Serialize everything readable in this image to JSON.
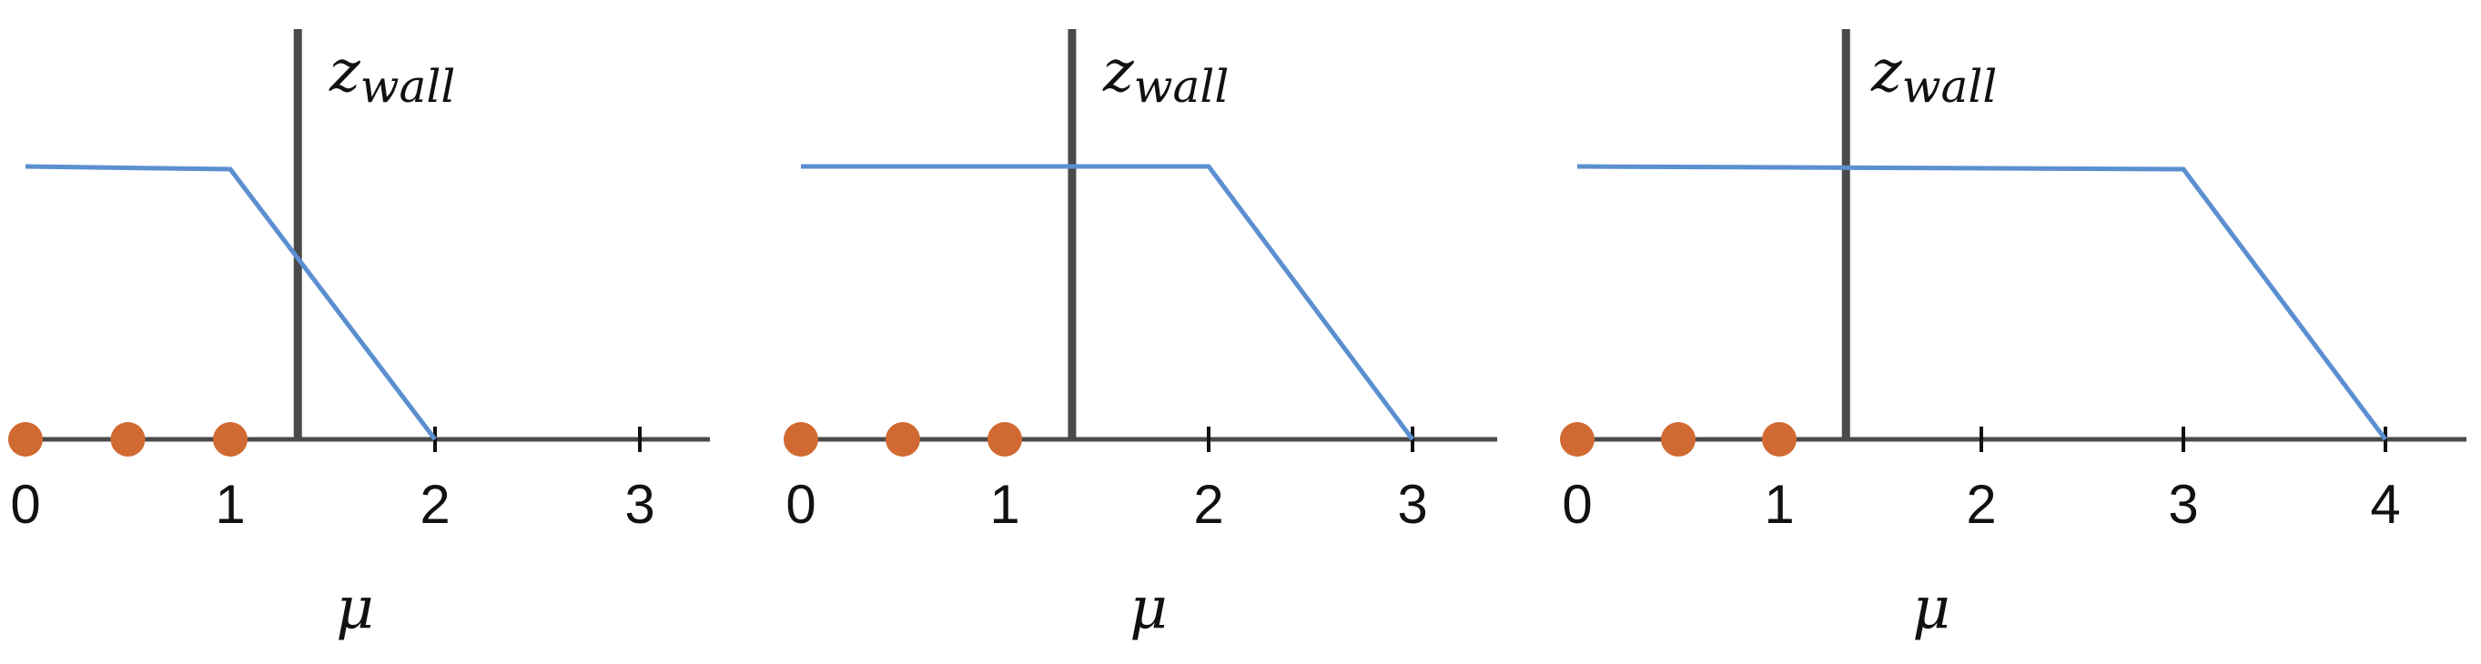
{
  "colors": {
    "axis": "#4a4a4a",
    "wall": "#4a4a4a",
    "curve": "#5b8fd0",
    "points": "#d06a32"
  },
  "wall_label": {
    "base": "z",
    "subscript": "wall"
  },
  "axis_symbol": "μ",
  "panels": [
    {
      "tick_labels": [
        "0",
        "1",
        "2",
        "3"
      ],
      "tick_values": [
        0,
        1,
        2,
        3
      ],
      "points_mu": [
        0,
        0.5,
        1
      ],
      "wall_mu": 1.33,
      "curve_mu": [
        0,
        1,
        2
      ],
      "curve_level": [
        1,
        0.99,
        0
      ]
    },
    {
      "tick_labels": [
        "0",
        "1",
        "2",
        "3"
      ],
      "tick_values": [
        0,
        1,
        2,
        3
      ],
      "points_mu": [
        0,
        0.5,
        1
      ],
      "wall_mu": 1.33,
      "curve_mu": [
        0,
        2,
        3
      ],
      "curve_level": [
        1,
        1,
        0
      ]
    },
    {
      "tick_labels": [
        "0",
        "1",
        "2",
        "3",
        "4"
      ],
      "tick_values": [
        0,
        1,
        2,
        3,
        4
      ],
      "points_mu": [
        0,
        0.5,
        1
      ],
      "wall_mu": 1.33,
      "curve_mu": [
        0,
        3,
        4
      ],
      "curve_level": [
        1,
        0.99,
        0
      ]
    }
  ]
}
